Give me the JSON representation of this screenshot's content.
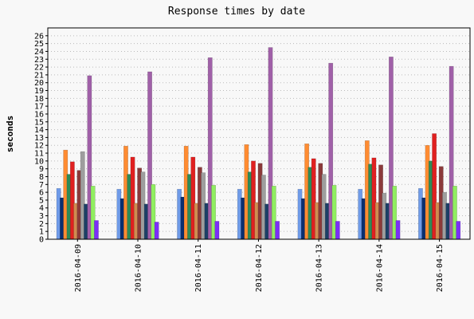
{
  "chart_data": {
    "type": "bar",
    "title": "Response times by date",
    "xlabel": "",
    "ylabel": "seconds",
    "ylim": [
      0,
      27
    ],
    "yticks": [
      0,
      1,
      2,
      3,
      4,
      5,
      6,
      7,
      8,
      9,
      10,
      11,
      12,
      13,
      14,
      15,
      16,
      17,
      18,
      19,
      20,
      21,
      22,
      23,
      24,
      25,
      26
    ],
    "grid": "horizontal dotted",
    "legend": "none",
    "categories": [
      "2016-04-09",
      "2016-04-10",
      "2016-04-11",
      "2016-04-12",
      "2016-04-13",
      "2016-04-14",
      "2016-04-15"
    ],
    "series": [
      {
        "color": "#6f9be8",
        "values": [
          6.5,
          6.4,
          6.4,
          6.4,
          6.4,
          6.4,
          6.5
        ]
      },
      {
        "color": "#0a2f70",
        "values": [
          5.3,
          5.2,
          5.4,
          5.3,
          5.2,
          5.2,
          5.3
        ]
      },
      {
        "color": "#ff8c32",
        "values": [
          11.4,
          11.9,
          11.9,
          12.1,
          12.2,
          12.6,
          12.0
        ]
      },
      {
        "color": "#2e8b57",
        "values": [
          8.3,
          8.3,
          8.3,
          8.6,
          9.2,
          9.6,
          10.0
        ]
      },
      {
        "color": "#e02020",
        "values": [
          9.9,
          10.5,
          10.5,
          10.0,
          10.3,
          10.4,
          13.5
        ]
      },
      {
        "color": "#d08c50",
        "values": [
          4.6,
          4.6,
          4.6,
          4.7,
          4.7,
          4.7,
          4.7
        ]
      },
      {
        "color": "#8b3a3a",
        "values": [
          8.8,
          9.1,
          9.2,
          9.7,
          9.7,
          9.5,
          9.3
        ]
      },
      {
        "color": "#9e9e9e",
        "values": [
          11.2,
          8.6,
          8.5,
          8.2,
          8.3,
          5.9,
          6.0
        ]
      },
      {
        "color": "#1c3f66",
        "values": [
          4.5,
          4.5,
          4.6,
          4.5,
          4.6,
          4.6,
          4.6
        ]
      },
      {
        "color": "#a060a8",
        "values": [
          20.9,
          21.4,
          23.2,
          24.5,
          22.5,
          23.3,
          22.1
        ]
      },
      {
        "color": "#90ee60",
        "values": [
          6.8,
          7.0,
          6.9,
          6.8,
          6.9,
          6.8,
          6.8
        ]
      },
      {
        "color": "#7b2ff7",
        "values": [
          2.4,
          2.2,
          2.3,
          2.3,
          2.3,
          2.4,
          2.3
        ]
      }
    ]
  }
}
